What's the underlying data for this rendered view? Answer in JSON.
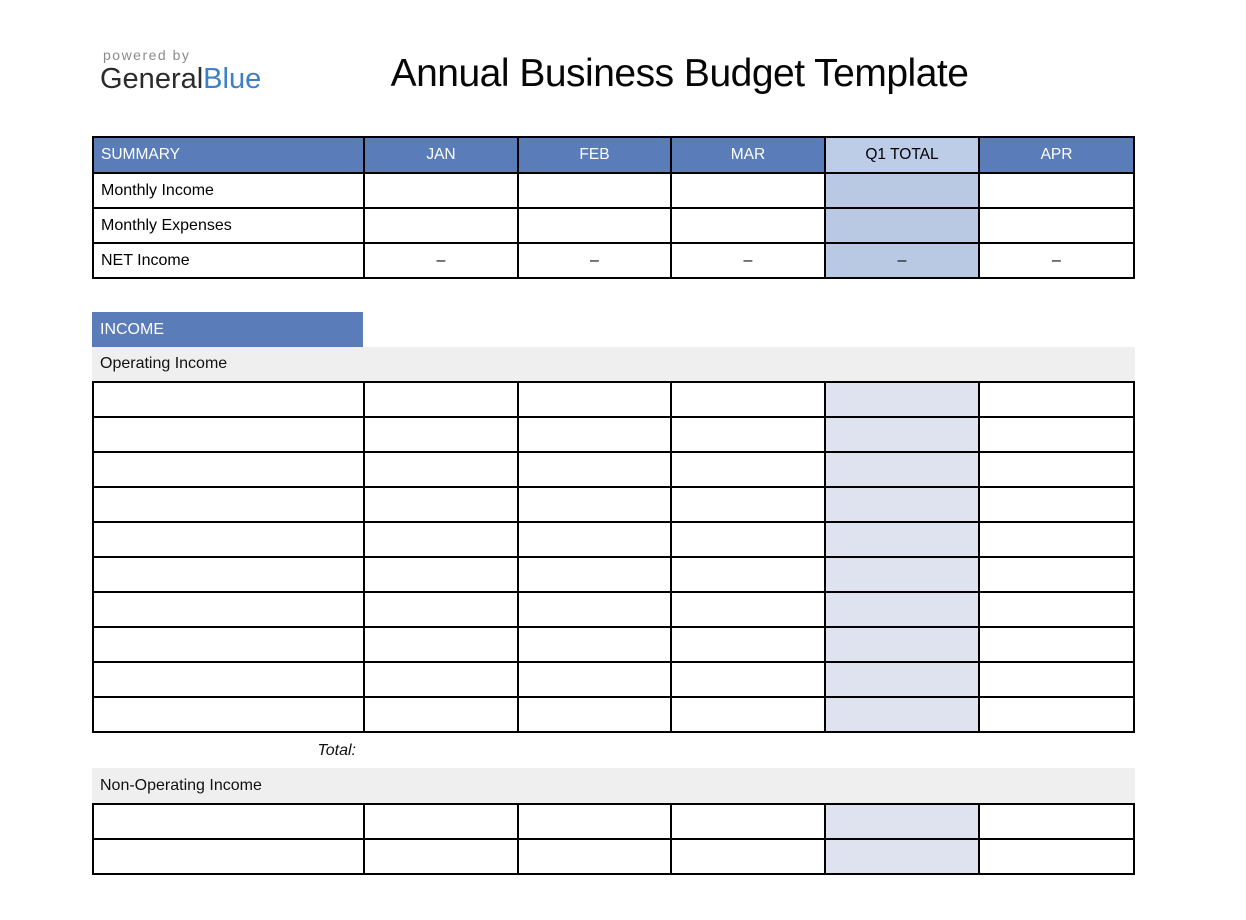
{
  "logo": {
    "powered_by": "powered by",
    "name_dark": "General",
    "name_accent": "Blue"
  },
  "page": {
    "title": "Annual Business Budget Template"
  },
  "summary_table": {
    "columns": [
      "SUMMARY",
      "JAN",
      "FEB",
      "MAR",
      "Q1 TOTAL",
      "APR"
    ],
    "rows": [
      {
        "label": "Monthly Income",
        "values": [
          "",
          "",
          "",
          "",
          ""
        ]
      },
      {
        "label": "Monthly Expenses",
        "values": [
          "",
          "",
          "",
          "",
          ""
        ]
      },
      {
        "label": "NET Income",
        "values": [
          "–",
          "–",
          "–",
          "–",
          "–"
        ]
      }
    ]
  },
  "income_section": {
    "header": "INCOME",
    "subsections": [
      {
        "label": "Operating Income",
        "empty_rows": 10,
        "total_label": "Total:"
      },
      {
        "label": "Non-Operating Income",
        "empty_rows": 2
      }
    ]
  },
  "colors": {
    "header_blue": "#5a7cb8",
    "q1_header": "#becde7",
    "q1_summary": "#b9c9e3",
    "q1_body": "#dee3ef",
    "band_gray": "#efefef",
    "border": "#000000",
    "logo_gray": "#8c8c8c",
    "logo_dark": "#2b2b2b",
    "logo_blue": "#3c80c8"
  }
}
